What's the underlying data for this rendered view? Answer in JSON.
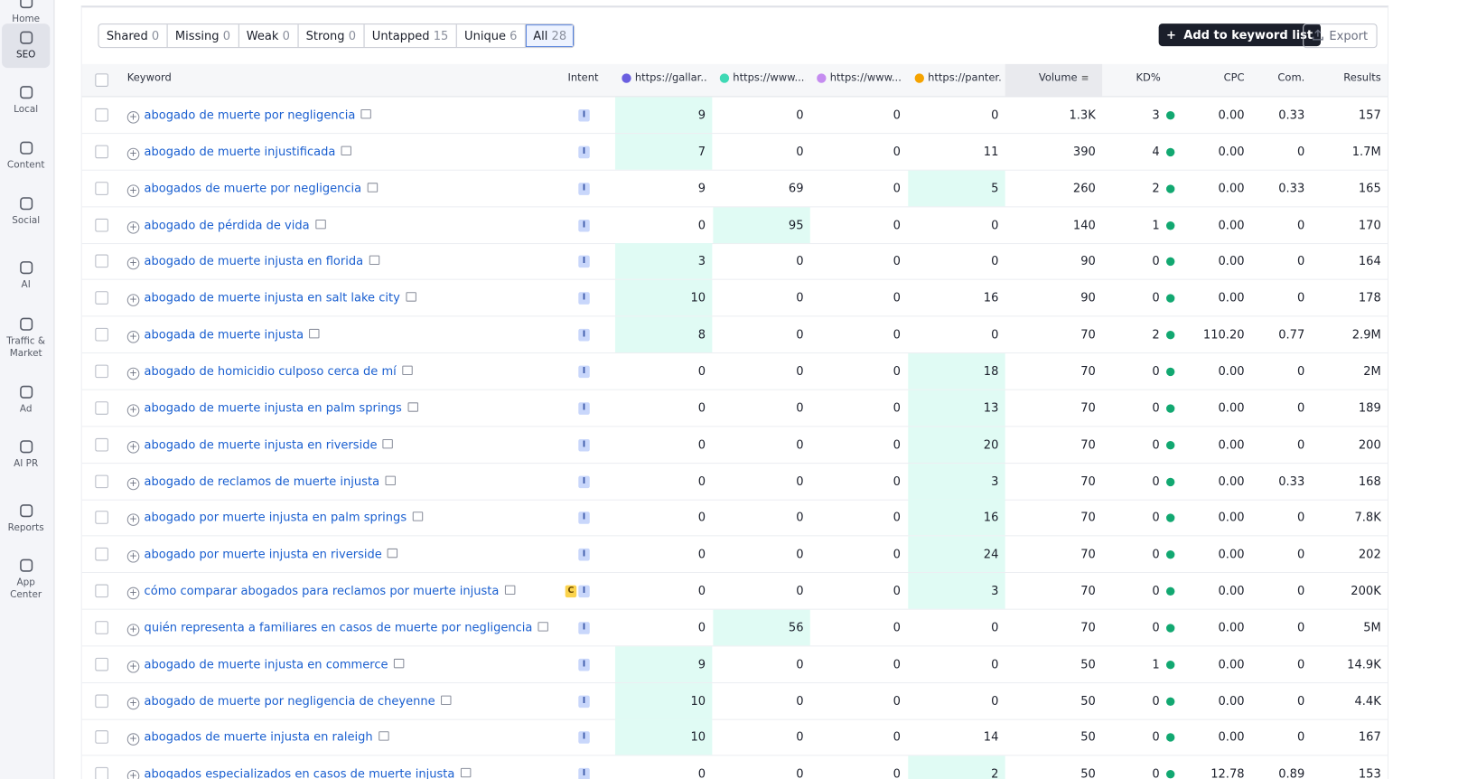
{
  "sidebar": [
    "Home",
    "SEO",
    "Local",
    "Content",
    "Social",
    "AI",
    "Traffic & Market",
    "Ad",
    "AI PR",
    "Reports",
    "App Center"
  ],
  "filters": [
    {
      "label": "Shared",
      "count": "0"
    },
    {
      "label": "Missing",
      "count": "0"
    },
    {
      "label": "Weak",
      "count": "0"
    },
    {
      "label": "Strong",
      "count": "0"
    },
    {
      "label": "Untapped",
      "count": "15"
    },
    {
      "label": "Unique",
      "count": "6"
    },
    {
      "label": "All",
      "count": "28"
    }
  ],
  "buttons": {
    "add": "Add to keyword list",
    "export": "Export"
  },
  "columns": {
    "keyword": "Keyword",
    "intent": "Intent",
    "competitors": [
      {
        "label": "https://gallar...",
        "color": "#6a5fe0"
      },
      {
        "label": "https://www....",
        "color": "#3fd9b5"
      },
      {
        "label": "https://www....",
        "color": "#c58cf0"
      },
      {
        "label": "https://panter...",
        "color": "#f5a300"
      }
    ],
    "volume": "Volume",
    "kd": "KD%",
    "cpc": "CPC",
    "com": "Com.",
    "results": "Results"
  },
  "rows": [
    {
      "keyword": "abogado de muerte por negligencia",
      "intents": [
        "I"
      ],
      "positions": [
        9,
        0,
        0,
        0
      ],
      "volume": "1.3K",
      "kd": "3",
      "cpc": "0.00",
      "com": "0.33",
      "results": "157"
    },
    {
      "keyword": "abogado de muerte injustificada",
      "intents": [
        "I"
      ],
      "positions": [
        7,
        0,
        0,
        11
      ],
      "volume": "390",
      "kd": "4",
      "cpc": "0.00",
      "com": "0",
      "results": "1.7M"
    },
    {
      "keyword": "abogados de muerte por negligencia",
      "intents": [
        "I"
      ],
      "positions": [
        9,
        69,
        0,
        5
      ],
      "volume": "260",
      "kd": "2",
      "cpc": "0.00",
      "com": "0.33",
      "results": "165"
    },
    {
      "keyword": "abogado de pérdida de vida",
      "intents": [
        "I"
      ],
      "positions": [
        0,
        95,
        0,
        0
      ],
      "volume": "140",
      "kd": "1",
      "cpc": "0.00",
      "com": "0",
      "results": "170"
    },
    {
      "keyword": "abogado de muerte injusta en florida",
      "intents": [
        "I"
      ],
      "positions": [
        3,
        0,
        0,
        0
      ],
      "volume": "90",
      "kd": "0",
      "cpc": "0.00",
      "com": "0",
      "results": "164"
    },
    {
      "keyword": "abogado de muerte injusta en salt lake city",
      "intents": [
        "I"
      ],
      "positions": [
        10,
        0,
        0,
        16
      ],
      "volume": "90",
      "kd": "0",
      "cpc": "0.00",
      "com": "0",
      "results": "178"
    },
    {
      "keyword": "abogada de muerte injusta",
      "intents": [
        "I"
      ],
      "positions": [
        8,
        0,
        0,
        0
      ],
      "volume": "70",
      "kd": "2",
      "cpc": "110.20",
      "com": "0.77",
      "results": "2.9M"
    },
    {
      "keyword": "abogado de homicidio culposo cerca de mí",
      "intents": [
        "I"
      ],
      "positions": [
        0,
        0,
        0,
        18
      ],
      "volume": "70",
      "kd": "0",
      "cpc": "0.00",
      "com": "0",
      "results": "2M"
    },
    {
      "keyword": "abogado de muerte injusta en palm springs",
      "intents": [
        "I"
      ],
      "positions": [
        0,
        0,
        0,
        13
      ],
      "volume": "70",
      "kd": "0",
      "cpc": "0.00",
      "com": "0",
      "results": "189"
    },
    {
      "keyword": "abogado de muerte injusta en riverside",
      "intents": [
        "I"
      ],
      "positions": [
        0,
        0,
        0,
        20
      ],
      "volume": "70",
      "kd": "0",
      "cpc": "0.00",
      "com": "0",
      "results": "200"
    },
    {
      "keyword": "abogado de reclamos de muerte injusta",
      "intents": [
        "I"
      ],
      "positions": [
        0,
        0,
        0,
        3
      ],
      "volume": "70",
      "kd": "0",
      "cpc": "0.00",
      "com": "0.33",
      "results": "168"
    },
    {
      "keyword": "abogado por muerte injusta en palm springs",
      "intents": [
        "I"
      ],
      "positions": [
        0,
        0,
        0,
        16
      ],
      "volume": "70",
      "kd": "0",
      "cpc": "0.00",
      "com": "0",
      "results": "7.8K"
    },
    {
      "keyword": "abogado por muerte injusta en riverside",
      "intents": [
        "I"
      ],
      "positions": [
        0,
        0,
        0,
        24
      ],
      "volume": "70",
      "kd": "0",
      "cpc": "0.00",
      "com": "0",
      "results": "202"
    },
    {
      "keyword": "cómo comparar abogados para reclamos por muerte injusta",
      "intents": [
        "C",
        "I"
      ],
      "positions": [
        0,
        0,
        0,
        3
      ],
      "volume": "70",
      "kd": "0",
      "cpc": "0.00",
      "com": "0",
      "results": "200K"
    },
    {
      "keyword": "quién representa a familiares en casos de muerte por negligencia",
      "intents": [
        "I"
      ],
      "positions": [
        0,
        56,
        0,
        0
      ],
      "volume": "70",
      "kd": "0",
      "cpc": "0.00",
      "com": "0",
      "results": "5M"
    },
    {
      "keyword": "abogado de muerte injusta en commerce",
      "intents": [
        "I"
      ],
      "positions": [
        9,
        0,
        0,
        0
      ],
      "volume": "50",
      "kd": "1",
      "cpc": "0.00",
      "com": "0",
      "results": "14.9K"
    },
    {
      "keyword": "abogado de muerte por negligencia de cheyenne",
      "intents": [
        "I"
      ],
      "positions": [
        10,
        0,
        0,
        0
      ],
      "volume": "50",
      "kd": "0",
      "cpc": "0.00",
      "com": "0",
      "results": "4.4K"
    },
    {
      "keyword": "abogados de muerte injusta en raleigh",
      "intents": [
        "I"
      ],
      "positions": [
        10,
        0,
        0,
        14
      ],
      "volume": "50",
      "kd": "0",
      "cpc": "0.00",
      "com": "0",
      "results": "167"
    },
    {
      "keyword": "abogados especializados en casos de muerte injusta",
      "intents": [
        "I"
      ],
      "positions": [
        0,
        0,
        0,
        2
      ],
      "volume": "50",
      "kd": "0",
      "cpc": "12.78",
      "com": "0.89",
      "results": "153"
    }
  ]
}
